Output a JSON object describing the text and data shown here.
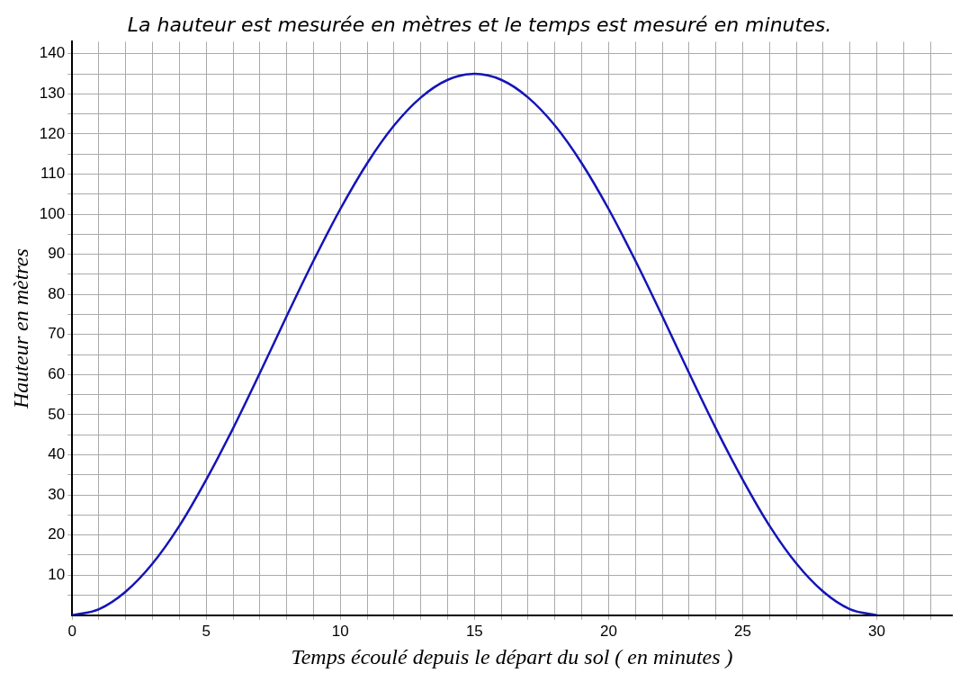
{
  "chart_data": {
    "type": "line",
    "title": "La hauteur est mesurée en mètres et le temps est mesuré en minutes.",
    "xlabel": "Temps écoulé depuis le départ du sol ( en minutes )",
    "ylabel": "Hauteur en mètres",
    "x": [
      0,
      1,
      2,
      3,
      4,
      5,
      6,
      7,
      8,
      9,
      10,
      11,
      12,
      13,
      14,
      15,
      16,
      17,
      18,
      19,
      20,
      21,
      22,
      23,
      24,
      25,
      26,
      27,
      28,
      29,
      30
    ],
    "series": [
      {
        "color": "#1414b8",
        "values": [
          0,
          1.5,
          5.9,
          12.9,
          22.3,
          33.8,
          46.6,
          60.4,
          74.6,
          88.4,
          101.3,
          112.7,
          122.1,
          129.1,
          133.5,
          135,
          133.5,
          129.1,
          122.1,
          112.7,
          101.3,
          88.4,
          74.6,
          60.4,
          46.6,
          33.8,
          22.3,
          12.9,
          5.9,
          1.5,
          0
        ]
      }
    ],
    "xlim": [
      0,
      32.8
    ],
    "ylim": [
      0,
      143
    ],
    "xticks": [
      0,
      {
        "value": 1,
        "label": null
      },
      {
        "value": 2,
        "label": null
      },
      {
        "value": 3,
        "label": null
      },
      {
        "value": 4,
        "label": null
      },
      5,
      {
        "value": 6,
        "label": null
      },
      {
        "value": 7,
        "label": null
      },
      {
        "value": 8,
        "label": null
      },
      {
        "value": 9,
        "label": null
      },
      10,
      {
        "value": 11,
        "label": null
      },
      {
        "value": 12,
        "label": null
      },
      {
        "value": 13,
        "label": null
      },
      {
        "value": 14,
        "label": null
      },
      15,
      {
        "value": 16,
        "label": null
      },
      {
        "value": 17,
        "label": null
      },
      {
        "value": 18,
        "label": null
      },
      {
        "value": 19,
        "label": null
      },
      20,
      {
        "value": 21,
        "label": null
      },
      {
        "value": 22,
        "label": null
      },
      {
        "value": 23,
        "label": null
      },
      {
        "value": 24,
        "label": null
      },
      25,
      {
        "value": 26,
        "label": null
      },
      {
        "value": 27,
        "label": null
      },
      {
        "value": 28,
        "label": null
      },
      {
        "value": 29,
        "label": null
      },
      30,
      {
        "value": 31,
        "label": null
      },
      {
        "value": 32,
        "label": null
      }
    ],
    "yticks": [
      {
        "value": 5,
        "label": null
      },
      10,
      {
        "value": 15,
        "label": null
      },
      20,
      {
        "value": 25,
        "label": null
      },
      30,
      {
        "value": 35,
        "label": null
      },
      40,
      {
        "value": 45,
        "label": null
      },
      50,
      {
        "value": 55,
        "label": null
      },
      60,
      {
        "value": 65,
        "label": null
      },
      70,
      {
        "value": 75,
        "label": null
      },
      80,
      {
        "value": 85,
        "label": null
      },
      90,
      {
        "value": 95,
        "label": null
      },
      100,
      {
        "value": 105,
        "label": null
      },
      110,
      {
        "value": 115,
        "label": null
      },
      120,
      {
        "value": 125,
        "label": null
      },
      130,
      {
        "value": 135,
        "label": null
      },
      140
    ],
    "grid": true,
    "legend": false,
    "marker": "none",
    "line_style": "solid"
  }
}
